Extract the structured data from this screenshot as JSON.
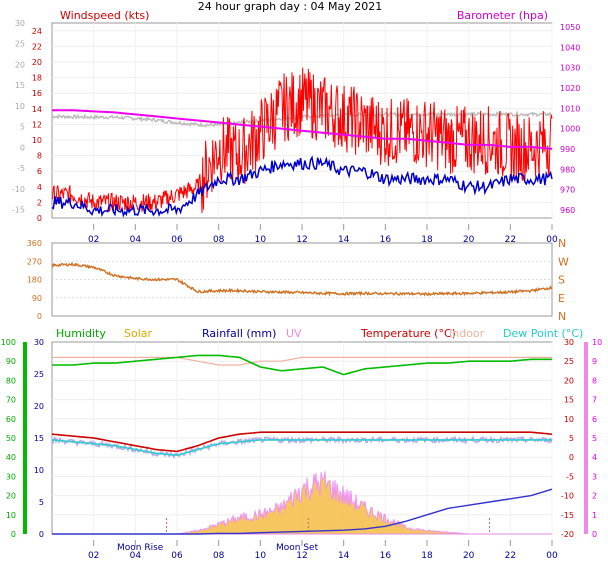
{
  "title": "24 hour graph day : 04 May 2021",
  "colors": {
    "wind": "#ee0000",
    "gust": "#ff0000",
    "avgwind": "#0000cc",
    "baro": "#ee00ee",
    "temp_faint": "#bbbbbb",
    "winddir": "#d07020",
    "humidity": "#00bb00",
    "solar": "#f0a820",
    "rainfall": "#3333cc",
    "uv": "#ee88ee",
    "temperature": "#cc0000",
    "indoor": "#f0b0a0",
    "dewpoint": "#33cccc",
    "axis_left": "#cc0000",
    "axis_right": "#cc00cc"
  },
  "chart_data": [
    {
      "type": "line",
      "panel": "wind-pressure",
      "legend_left": "Windspeed (kts)",
      "legend_right": "Barometer (hpa)",
      "x_ticks": [
        "02",
        "04",
        "06",
        "08",
        "10",
        "12",
        "14",
        "16",
        "18",
        "20",
        "22",
        "00"
      ],
      "y_left_ticks": [
        "0",
        "2",
        "4",
        "6",
        "8",
        "10",
        "12",
        "14",
        "16",
        "18",
        "20",
        "22",
        "24"
      ],
      "y_left_range": [
        0,
        25
      ],
      "y_faint_ticks": [
        "-15",
        "-10",
        "-5",
        "0",
        "5",
        "10",
        "15",
        "20",
        "25",
        "30"
      ],
      "y_right_ticks": [
        "960",
        "970",
        "980",
        "990",
        "1000",
        "1010",
        "1020",
        "1030",
        "1040",
        "1050"
      ],
      "y_right_range": [
        956,
        1052
      ],
      "hours": [
        0,
        1,
        2,
        3,
        4,
        5,
        6,
        7,
        8,
        9,
        10,
        11,
        12,
        13,
        14,
        15,
        16,
        17,
        18,
        19,
        20,
        21,
        22,
        23,
        24
      ],
      "series": [
        {
          "key": "gust",
          "values": [
            3,
            3,
            2,
            2,
            2,
            2,
            3,
            4,
            9,
            8,
            11,
            14,
            15,
            14,
            13,
            12,
            11,
            11,
            11,
            10,
            10,
            10,
            9,
            9,
            10
          ]
        },
        {
          "key": "avgwind",
          "values": [
            2,
            2,
            1,
            1,
            1,
            1,
            1,
            3,
            5,
            5,
            6,
            7,
            7,
            7,
            6,
            6,
            5,
            5,
            5,
            5,
            4,
            4,
            5,
            5,
            5
          ]
        },
        {
          "key": "baro",
          "values": [
            1009,
            1009,
            1008.5,
            1008,
            1007,
            1006,
            1005,
            1004,
            1003,
            1002,
            1001,
            1000,
            999,
            998,
            997,
            996,
            995,
            995,
            994,
            993,
            992,
            992,
            991,
            991,
            990
          ]
        },
        {
          "key": "temp_faint",
          "values": [
            7.5,
            7.4,
            7.3,
            7.3,
            7,
            6.6,
            6,
            5.5,
            5.4,
            6,
            6.5,
            7,
            7.4,
            7.7,
            7.8,
            7.9,
            8,
            8,
            8,
            8,
            8,
            8,
            8,
            8,
            8
          ]
        }
      ]
    },
    {
      "type": "line",
      "panel": "wind-direction",
      "y_left_ticks": [
        "0",
        "90",
        "180",
        "270",
        "360"
      ],
      "y_right_labels": [
        "N",
        "W",
        "S",
        "E",
        "N"
      ],
      "y_range": [
        0,
        360
      ],
      "hours": [
        0,
        1,
        2,
        3,
        4,
        5,
        6,
        7,
        8,
        9,
        10,
        11,
        12,
        13,
        14,
        15,
        16,
        17,
        18,
        19,
        20,
        21,
        22,
        23,
        24
      ],
      "values": [
        250,
        255,
        240,
        200,
        185,
        180,
        180,
        120,
        125,
        125,
        120,
        118,
        115,
        112,
        110,
        112,
        110,
        110,
        108,
        110,
        112,
        115,
        118,
        125,
        140
      ]
    },
    {
      "type": "line",
      "panel": "temp-rain",
      "legend": [
        "Humidity",
        "Solar",
        "Rainfall (mm)",
        "UV",
        "Temperature (°C)",
        "Indoor",
        "Dew Point (°C)"
      ],
      "x_ticks": [
        "02",
        "04",
        "06",
        "08",
        "10",
        "12",
        "14",
        "16",
        "18",
        "20",
        "22",
        "00"
      ],
      "annotations": [
        "Moon Rise",
        "Moon Set"
      ],
      "y_humidity_ticks": [
        "0",
        "10",
        "20",
        "30",
        "40",
        "50",
        "60",
        "70",
        "80",
        "90",
        "100"
      ],
      "y_rain_ticks": [
        "0",
        "5",
        "10",
        "15",
        "20",
        "25",
        "30"
      ],
      "y_uv_ticks": [
        "0",
        "1",
        "2",
        "3",
        "4",
        "5",
        "6",
        "7",
        "8",
        "9",
        "10"
      ],
      "y_temp_ticks": [
        "-20",
        "-15",
        "-10",
        "-5",
        "0",
        "5",
        "10",
        "15",
        "20",
        "25",
        "30"
      ],
      "hours": [
        0,
        1,
        2,
        3,
        4,
        5,
        6,
        7,
        8,
        9,
        10,
        11,
        12,
        13,
        14,
        15,
        16,
        17,
        18,
        19,
        20,
        21,
        22,
        23,
        24
      ],
      "series": [
        {
          "key": "humidity",
          "values": [
            88,
            88,
            89,
            89,
            90,
            91,
            92,
            93,
            93,
            92,
            87,
            85,
            86,
            87,
            83,
            86,
            87,
            88,
            89,
            89,
            90,
            90,
            90,
            91,
            91
          ]
        },
        {
          "key": "temperature",
          "values": [
            6,
            5.5,
            5,
            4,
            3,
            2,
            1.5,
            3,
            5,
            6,
            6.5,
            6.5,
            6.5,
            6.5,
            6.5,
            6.5,
            6.5,
            6.5,
            6.5,
            6.5,
            6.5,
            6.5,
            6.5,
            6.5,
            6
          ]
        },
        {
          "key": "dewpoint",
          "values": [
            4.5,
            4,
            3.5,
            3,
            2,
            1,
            0.5,
            2,
            3.5,
            4,
            4.5,
            4.5,
            4.5,
            4.5,
            4.5,
            4.5,
            4.5,
            4.5,
            4.5,
            4.5,
            4.5,
            4.5,
            4.5,
            4.5,
            4.5
          ]
        },
        {
          "key": "indoor",
          "values": [
            26,
            26,
            26,
            26,
            26,
            26,
            26,
            25,
            24,
            24,
            25,
            25,
            26,
            26,
            26,
            26,
            26,
            26,
            26,
            26,
            26,
            26,
            26,
            26,
            26
          ]
        },
        {
          "key": "solar",
          "values": [
            0,
            0,
            0,
            0,
            0,
            0,
            0,
            0.5,
            1.5,
            2.5,
            3,
            4,
            7,
            8,
            6,
            4,
            2.5,
            1,
            0.5,
            0.3,
            0,
            0,
            0,
            0,
            0
          ]
        },
        {
          "key": "rainfall",
          "values": [
            0,
            0,
            0,
            0,
            0,
            0,
            0,
            0,
            0.1,
            0.1,
            0.2,
            0.3,
            0.4,
            0.5,
            0.6,
            0.8,
            1.2,
            2,
            3,
            4,
            4.5,
            5,
            5.5,
            6,
            7
          ]
        }
      ]
    }
  ]
}
